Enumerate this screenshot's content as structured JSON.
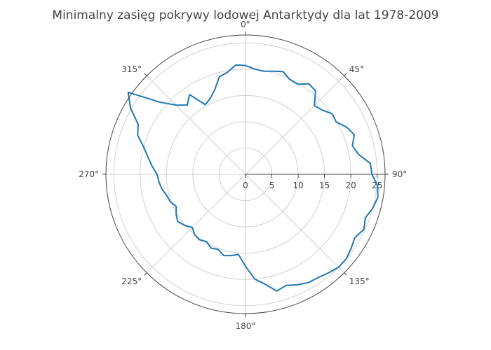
{
  "chart_data": {
    "type": "polar-line",
    "title": "Minimalny zasięg pokrywy lodowej Antarktydy dla lat 1978-2009",
    "angular_axis": {
      "direction": "clockwise",
      "rotation": "0° at top",
      "ticks": [
        "0°",
        "45°",
        "90°",
        "135°",
        "180°",
        "225°",
        "270°",
        "315°"
      ]
    },
    "radial_axis": {
      "range": [
        0,
        26.5
      ],
      "angle_deg": 90,
      "ticks": [
        {
          "value": 0,
          "label": "0"
        },
        {
          "value": 5,
          "label": "5"
        },
        {
          "value": 10,
          "label": "10"
        },
        {
          "value": 15,
          "label": "15"
        },
        {
          "value": 20,
          "label": "20"
        },
        {
          "value": 25,
          "label": "25"
        }
      ]
    },
    "grid": true,
    "line_color": "#1f77b4",
    "series": [
      {
        "theta": [
          0,
          5,
          10,
          15,
          20,
          25,
          30,
          35,
          40,
          45,
          50,
          55,
          60,
          65,
          70,
          75,
          80,
          85,
          90,
          95,
          100,
          105,
          110,
          115,
          120,
          125,
          130,
          135,
          140,
          145,
          150,
          155,
          160,
          165,
          170,
          175,
          180,
          185,
          190,
          195,
          200,
          205,
          210,
          215,
          220,
          225,
          230,
          235,
          240,
          245,
          250,
          255,
          260,
          265,
          270,
          275,
          280,
          285,
          290,
          295,
          300,
          305,
          310,
          315,
          320,
          325,
          330,
          335,
          340,
          345,
          350,
          355,
          360
        ],
        "r": [
          20.7,
          20.1,
          19.9,
          20.3,
          20.8,
          19.9,
          19.8,
          21.0,
          20.7,
          18.5,
          19.0,
          20.1,
          19.9,
          21.2,
          22.0,
          21.0,
          21.8,
          23.8,
          24.0,
          25.2,
          25.5,
          25.0,
          24.2,
          24.8,
          24.0,
          24.5,
          25.0,
          25.0,
          24.5,
          24.0,
          23.8,
          23.2,
          22.5,
          23.0,
          21.2,
          20.0,
          17.5,
          15.3,
          15.7,
          16.0,
          15.2,
          15.5,
          14.8,
          15.2,
          15.0,
          14.3,
          15.1,
          15.7,
          15.2,
          14.5,
          15.2,
          15.5,
          16.1,
          16.5,
          16.8,
          17.8,
          18.8,
          20.0,
          21.8,
          22.5,
          25.2,
          27.2,
          21.4,
          18.6,
          17.2,
          18.5,
          15.3,
          15.9,
          17.1,
          19.2,
          19.7,
          20.9,
          20.7
        ]
      }
    ]
  }
}
